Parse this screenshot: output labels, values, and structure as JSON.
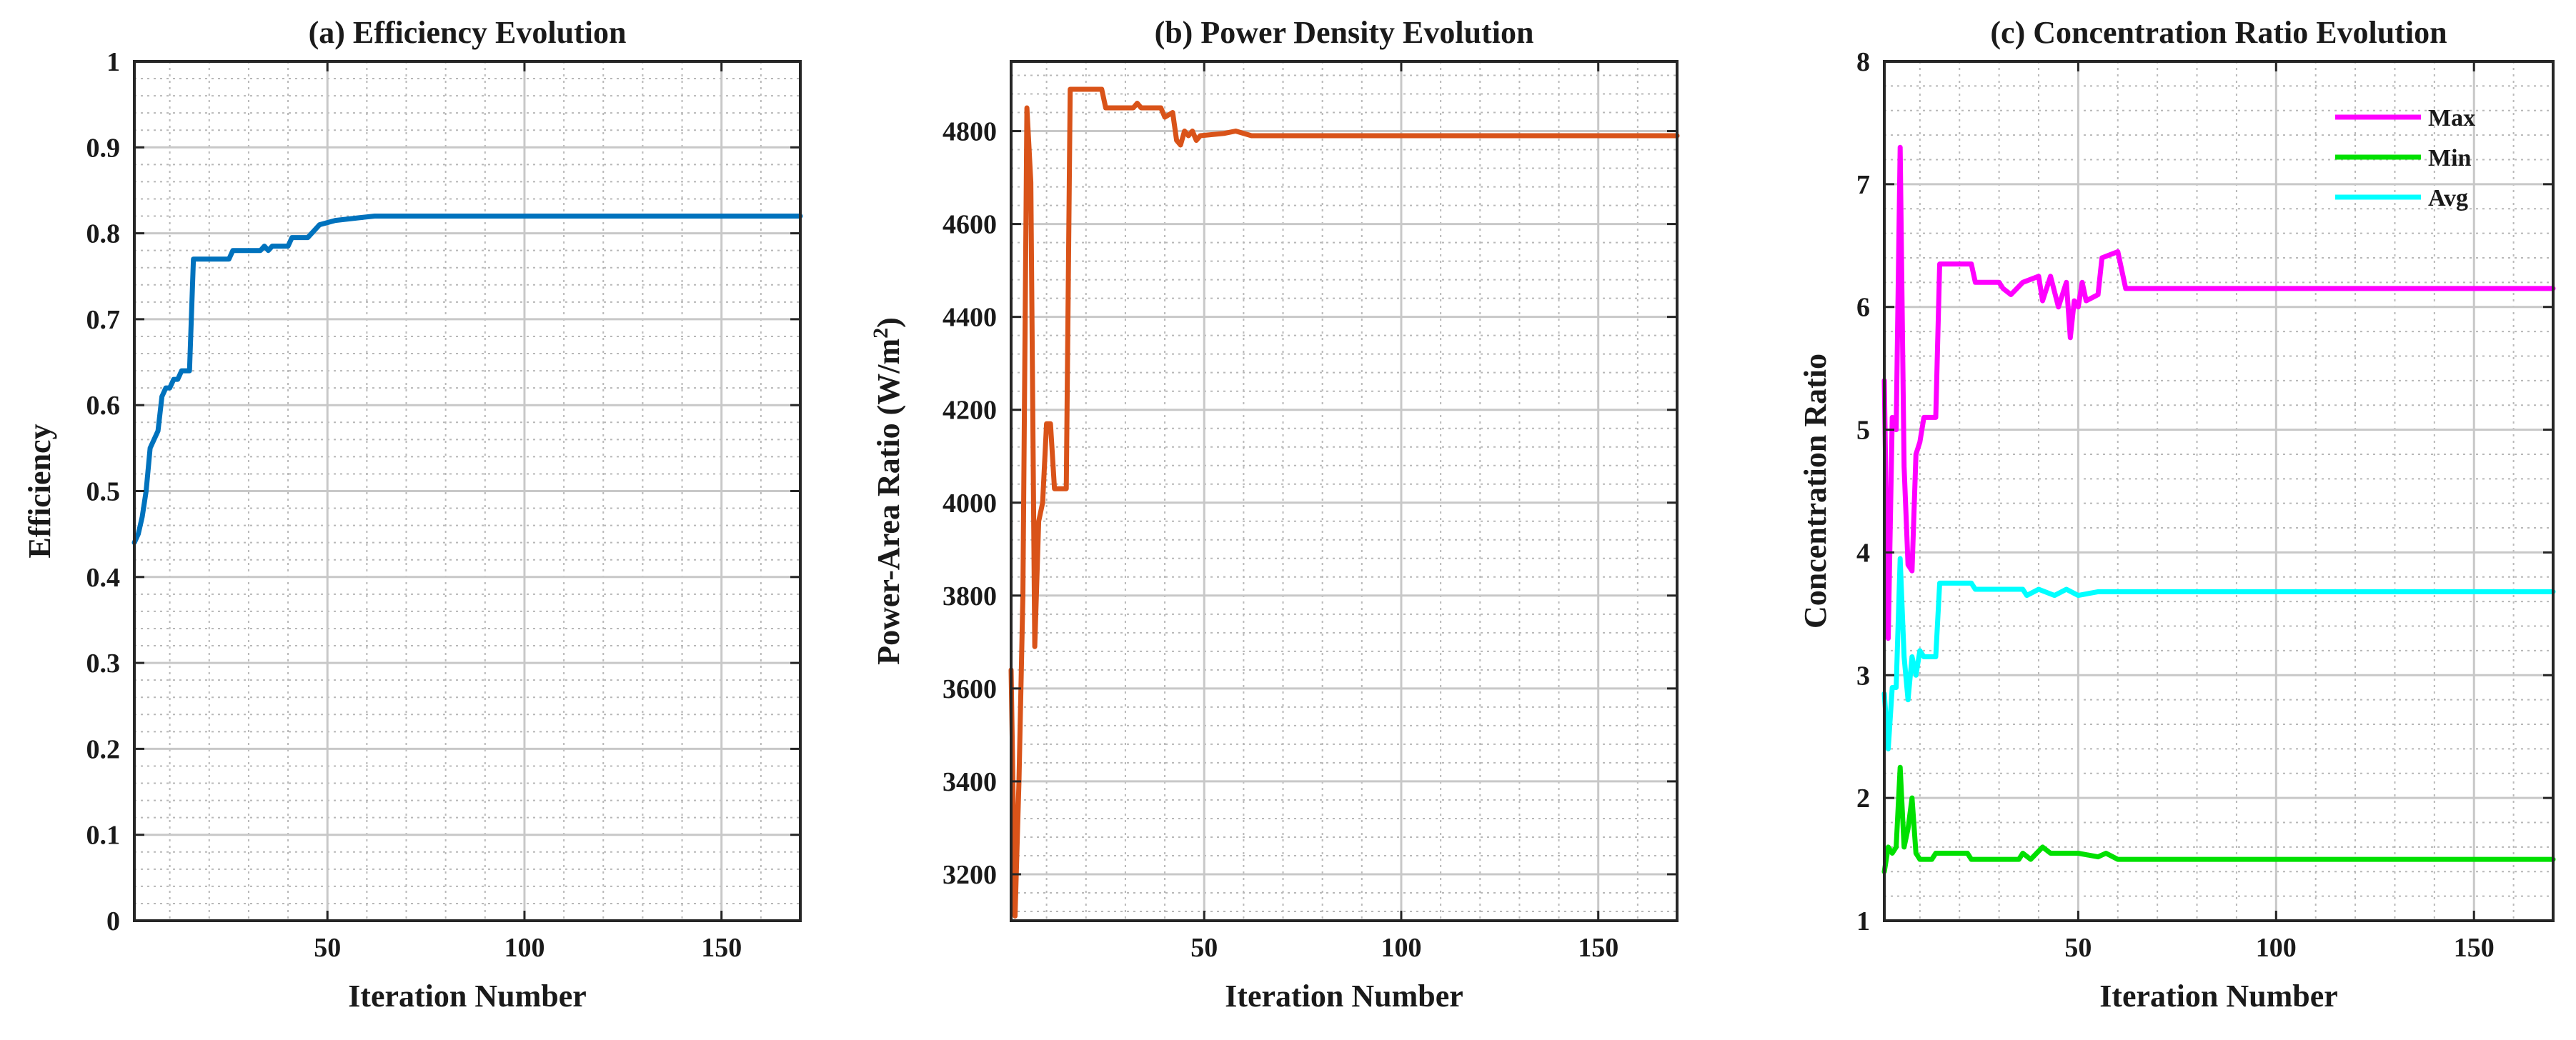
{
  "chart_data": [
    {
      "id": "a",
      "type": "line",
      "title": "(a) Efficiency Evolution",
      "xlabel": "Iteration Number",
      "ylabel": "Efficiency",
      "xlim": [
        1,
        170
      ],
      "ylim": [
        0,
        1
      ],
      "xticks": [
        50,
        100,
        150
      ],
      "yticks": [
        0,
        0.1,
        0.2,
        0.3,
        0.4,
        0.5,
        0.6,
        0.7,
        0.8,
        0.9,
        1
      ],
      "ytick_labels": [
        "0",
        "0.1",
        "0.2",
        "0.3",
        "0.4",
        "0.5",
        "0.6",
        "0.7",
        "0.8",
        "0.9",
        "1"
      ],
      "grid": true,
      "series": [
        {
          "name": "Efficiency",
          "color": "#0072BD",
          "points": [
            [
              1,
              0.44
            ],
            [
              2,
              0.45
            ],
            [
              3,
              0.47
            ],
            [
              4,
              0.5
            ],
            [
              5,
              0.55
            ],
            [
              6,
              0.56
            ],
            [
              7,
              0.57
            ],
            [
              8,
              0.61
            ],
            [
              9,
              0.62
            ],
            [
              10,
              0.62
            ],
            [
              11,
              0.63
            ],
            [
              12,
              0.63
            ],
            [
              13,
              0.64
            ],
            [
              15,
              0.64
            ],
            [
              16,
              0.77
            ],
            [
              17,
              0.77
            ],
            [
              25,
              0.77
            ],
            [
              26,
              0.78
            ],
            [
              33,
              0.78
            ],
            [
              34,
              0.785
            ],
            [
              35,
              0.78
            ],
            [
              36,
              0.785
            ],
            [
              40,
              0.785
            ],
            [
              41,
              0.795
            ],
            [
              45,
              0.795
            ],
            [
              46,
              0.8
            ],
            [
              48,
              0.81
            ],
            [
              52,
              0.815
            ],
            [
              58,
              0.818
            ],
            [
              62,
              0.82
            ],
            [
              170,
              0.82
            ]
          ]
        }
      ]
    },
    {
      "id": "b",
      "type": "line",
      "title": "(b) Power Density Evolution",
      "xlabel": "Iteration Number",
      "ylabel": "Power-Area Ratio (W/m²)",
      "ylabel_main": "Power-Area Ratio (W/m",
      "ylabel_sup": "2",
      "ylabel_end": ")",
      "xlim": [
        1,
        170
      ],
      "ylim": [
        3100,
        4950
      ],
      "xticks": [
        50,
        100,
        150
      ],
      "yticks": [
        3200,
        3400,
        3600,
        3800,
        4000,
        4200,
        4400,
        4600,
        4800
      ],
      "ytick_labels": [
        "3200",
        "3400",
        "3600",
        "3800",
        "4000",
        "4200",
        "4400",
        "4600",
        "4800"
      ],
      "grid": true,
      "series": [
        {
          "name": "Power-Area Ratio",
          "color": "#D95319",
          "points": [
            [
              1,
              3640
            ],
            [
              2,
              3110
            ],
            [
              3,
              3400
            ],
            [
              4,
              3800
            ],
            [
              5,
              4850
            ],
            [
              6,
              4690
            ],
            [
              7,
              3690
            ],
            [
              8,
              3960
            ],
            [
              9,
              4000
            ],
            [
              10,
              4170
            ],
            [
              11,
              4170
            ],
            [
              12,
              4030
            ],
            [
              15,
              4030
            ],
            [
              16,
              4890
            ],
            [
              24,
              4890
            ],
            [
              25,
              4850
            ],
            [
              32,
              4850
            ],
            [
              33,
              4860
            ],
            [
              34,
              4850
            ],
            [
              39,
              4850
            ],
            [
              40,
              4830
            ],
            [
              42,
              4840
            ],
            [
              43,
              4780
            ],
            [
              44,
              4770
            ],
            [
              45,
              4800
            ],
            [
              46,
              4790
            ],
            [
              47,
              4800
            ],
            [
              48,
              4780
            ],
            [
              49,
              4790
            ],
            [
              55,
              4795
            ],
            [
              58,
              4800
            ],
            [
              62,
              4790
            ],
            [
              170,
              4790
            ]
          ]
        }
      ]
    },
    {
      "id": "c",
      "type": "line",
      "title": "(c) Concentration Ratio Evolution",
      "xlabel": "Iteration Number",
      "ylabel": "Concentration Ratio",
      "xlim": [
        1,
        170
      ],
      "ylim": [
        1,
        8
      ],
      "xticks": [
        50,
        100,
        150
      ],
      "yticks": [
        1,
        2,
        3,
        4,
        5,
        6,
        7,
        8
      ],
      "ytick_labels": [
        "1",
        "2",
        "3",
        "4",
        "5",
        "6",
        "7",
        "8"
      ],
      "grid": true,
      "legend_position": "top-right",
      "series": [
        {
          "name": "Max",
          "color": "#FF00FF",
          "points": [
            [
              1,
              5.4
            ],
            [
              2,
              3.3
            ],
            [
              3,
              5.1
            ],
            [
              4,
              5.0
            ],
            [
              5,
              7.3
            ],
            [
              6,
              4.7
            ],
            [
              7,
              3.9
            ],
            [
              8,
              3.85
            ],
            [
              9,
              4.8
            ],
            [
              10,
              4.9
            ],
            [
              11,
              5.1
            ],
            [
              14,
              5.1
            ],
            [
              15,
              6.35
            ],
            [
              23,
              6.35
            ],
            [
              24,
              6.2
            ],
            [
              30,
              6.2
            ],
            [
              31,
              6.15
            ],
            [
              33,
              6.1
            ],
            [
              36,
              6.2
            ],
            [
              40,
              6.25
            ],
            [
              41,
              6.05
            ],
            [
              43,
              6.25
            ],
            [
              45,
              6.0
            ],
            [
              47,
              6.2
            ],
            [
              48,
              5.75
            ],
            [
              49,
              6.05
            ],
            [
              50,
              6.0
            ],
            [
              51,
              6.2
            ],
            [
              52,
              6.05
            ],
            [
              55,
              6.1
            ],
            [
              56,
              6.4
            ],
            [
              60,
              6.45
            ],
            [
              62,
              6.15
            ],
            [
              170,
              6.15
            ]
          ]
        },
        {
          "name": "Min",
          "color": "#00E000",
          "points": [
            [
              1,
              1.4
            ],
            [
              2,
              1.6
            ],
            [
              3,
              1.55
            ],
            [
              4,
              1.6
            ],
            [
              5,
              2.25
            ],
            [
              6,
              1.6
            ],
            [
              7,
              1.75
            ],
            [
              8,
              2.0
            ],
            [
              9,
              1.55
            ],
            [
              10,
              1.5
            ],
            [
              13,
              1.5
            ],
            [
              14,
              1.55
            ],
            [
              22,
              1.55
            ],
            [
              23,
              1.5
            ],
            [
              35,
              1.5
            ],
            [
              36,
              1.55
            ],
            [
              38,
              1.5
            ],
            [
              41,
              1.6
            ],
            [
              43,
              1.55
            ],
            [
              50,
              1.55
            ],
            [
              55,
              1.52
            ],
            [
              57,
              1.55
            ],
            [
              60,
              1.5
            ],
            [
              170,
              1.5
            ]
          ]
        },
        {
          "name": "Avg",
          "color": "#00FFFF",
          "points": [
            [
              1,
              2.85
            ],
            [
              2,
              2.4
            ],
            [
              3,
              2.9
            ],
            [
              4,
              2.9
            ],
            [
              5,
              3.95
            ],
            [
              6,
              3.15
            ],
            [
              7,
              2.8
            ],
            [
              8,
              3.15
            ],
            [
              9,
              3.0
            ],
            [
              10,
              3.2
            ],
            [
              11,
              3.15
            ],
            [
              14,
              3.15
            ],
            [
              15,
              3.75
            ],
            [
              23,
              3.75
            ],
            [
              24,
              3.7
            ],
            [
              36,
              3.7
            ],
            [
              37,
              3.65
            ],
            [
              40,
              3.7
            ],
            [
              44,
              3.65
            ],
            [
              47,
              3.7
            ],
            [
              50,
              3.65
            ],
            [
              55,
              3.68
            ],
            [
              62,
              3.68
            ],
            [
              170,
              3.68
            ]
          ]
        }
      ]
    }
  ]
}
